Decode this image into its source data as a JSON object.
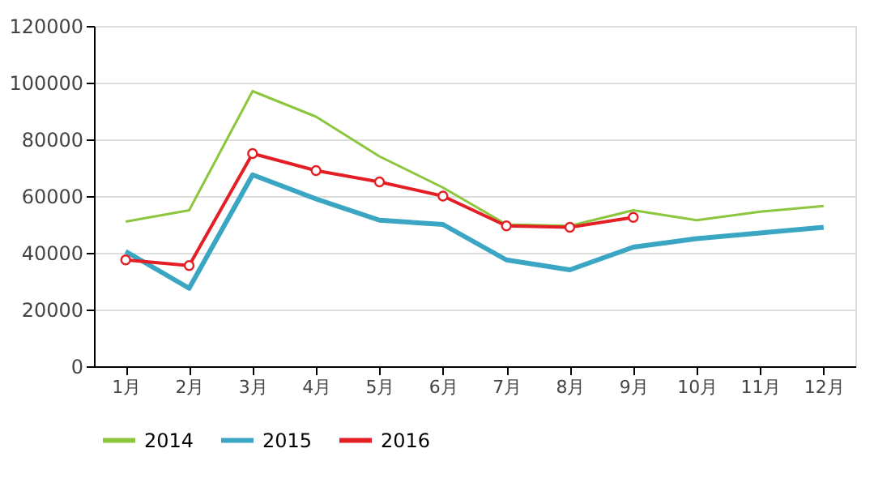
{
  "chart_data": {
    "type": "line",
    "categories": [
      "1月",
      "2月",
      "3月",
      "4月",
      "5月",
      "6月",
      "7月",
      "8月",
      "9月",
      "10月",
      "11月",
      "12月"
    ],
    "series": [
      {
        "name": "2014",
        "color": "#8cc63f",
        "marker": "none",
        "values": [
          51000,
          55000,
          97000,
          88000,
          74000,
          63000,
          50000,
          49500,
          55000,
          51500,
          54500,
          56500
        ]
      },
      {
        "name": "2015",
        "color": "#3aa6c4",
        "marker": "none",
        "values": [
          40500,
          27500,
          67500,
          59000,
          51500,
          50000,
          37500,
          34000,
          42000,
          45000,
          47000,
          49000
        ]
      },
      {
        "name": "2016",
        "color": "#e31e24",
        "marker": "circle",
        "values": [
          37500,
          35500,
          75000,
          69000,
          65000,
          60000,
          49500,
          49000,
          52500,
          null,
          null,
          null
        ]
      }
    ],
    "ylim": [
      0,
      120000
    ],
    "yticks": [
      0,
      20000,
      40000,
      60000,
      80000,
      100000,
      120000
    ],
    "grid": "y",
    "legend": "bottom",
    "line_style": "solid"
  }
}
